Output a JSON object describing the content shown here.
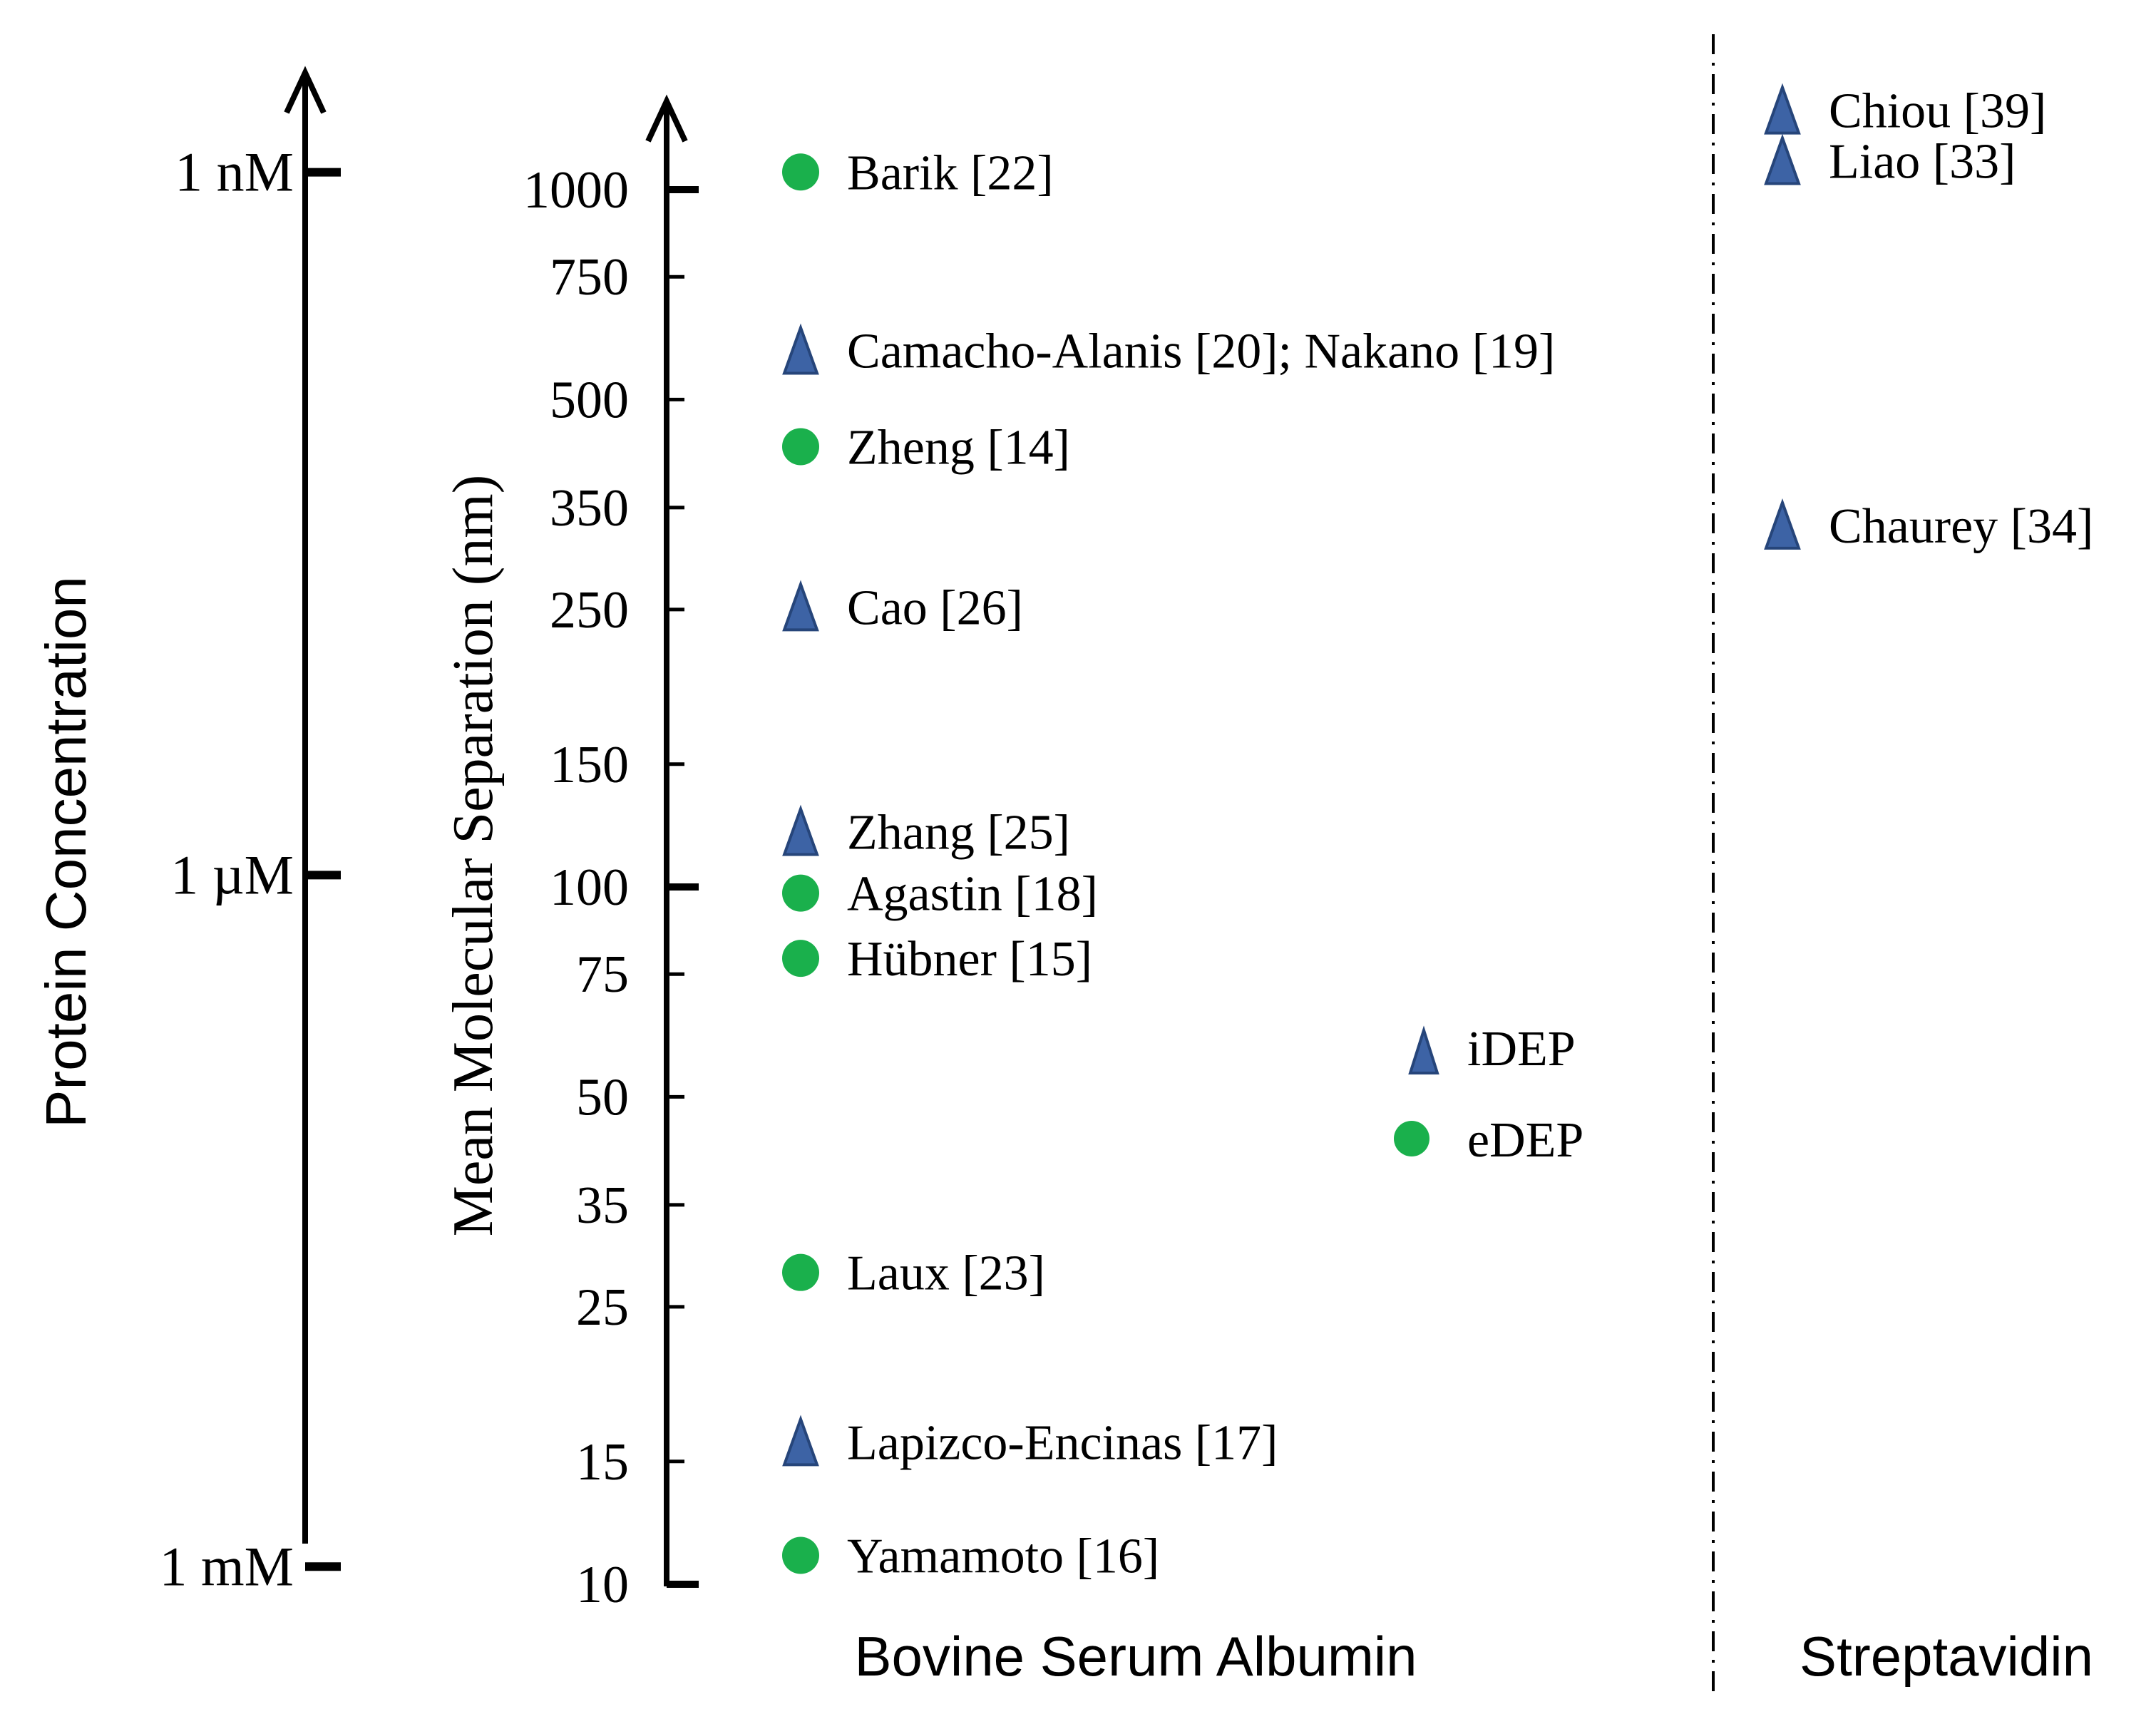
{
  "chart_data": {
    "type": "scatter",
    "title": "",
    "concentration_axis": {
      "label": "Protein Concentration",
      "ticks": [
        {
          "label": "1 nM",
          "value": 1059
        },
        {
          "label": "1 µM",
          "value": 104
        },
        {
          "label": "1 mM",
          "value": 10.6
        }
      ]
    },
    "separation_axis": {
      "label": "Mean Molecular  Separation (nm)",
      "scale": "log",
      "ylim": [
        10,
        1300
      ],
      "ticks": [
        10,
        15,
        25,
        35,
        50,
        75,
        100,
        150,
        250,
        350,
        500,
        750,
        1000
      ],
      "major_ticks": [
        10,
        100,
        1000
      ]
    },
    "groups": [
      {
        "label": "Bovine Serum Albumin"
      },
      {
        "label": "Streptavidin"
      }
    ],
    "legend": {
      "position": "center-right",
      "entries": [
        {
          "label": "iDEP",
          "marker": "triangle",
          "color": "#3d63a5"
        },
        {
          "label": "eDEP",
          "marker": "circle",
          "color": "#1ab04c"
        }
      ]
    },
    "series": [
      {
        "name": "iDEP",
        "marker": "triangle",
        "color": "#3d63a5",
        "points": [
          {
            "group": 0,
            "y": 588,
            "label": "Camacho-Alanis  [20]; Nakano [19]"
          },
          {
            "group": 0,
            "y": 252,
            "label": "Cao [26]"
          },
          {
            "group": 0,
            "y": 120,
            "label": "Zhang  [25]"
          },
          {
            "group": 0,
            "y": 16,
            "label": "Lapizco-Encinas  [17]"
          },
          {
            "group": 1,
            "y": 1300,
            "label": "Chiou  [39]"
          },
          {
            "group": 1,
            "y": 1100,
            "label": "Liao  [33]"
          },
          {
            "group": 1,
            "y": 330,
            "label": "Chaurey  [34]"
          }
        ]
      },
      {
        "name": "eDEP",
        "marker": "circle",
        "color": "#1ab04c",
        "points": [
          {
            "group": 0,
            "y": 1060,
            "label": "Barik  [22]"
          },
          {
            "group": 0,
            "y": 428,
            "label": "Zheng  [14]"
          },
          {
            "group": 0,
            "y": 98,
            "label": "Agastin  [18]"
          },
          {
            "group": 0,
            "y": 79,
            "label": "Hübner  [15]"
          },
          {
            "group": 0,
            "y": 28,
            "label": "Laux  [23]"
          },
          {
            "group": 0,
            "y": 11,
            "label": "Yamamoto  [16]"
          }
        ]
      }
    ]
  }
}
